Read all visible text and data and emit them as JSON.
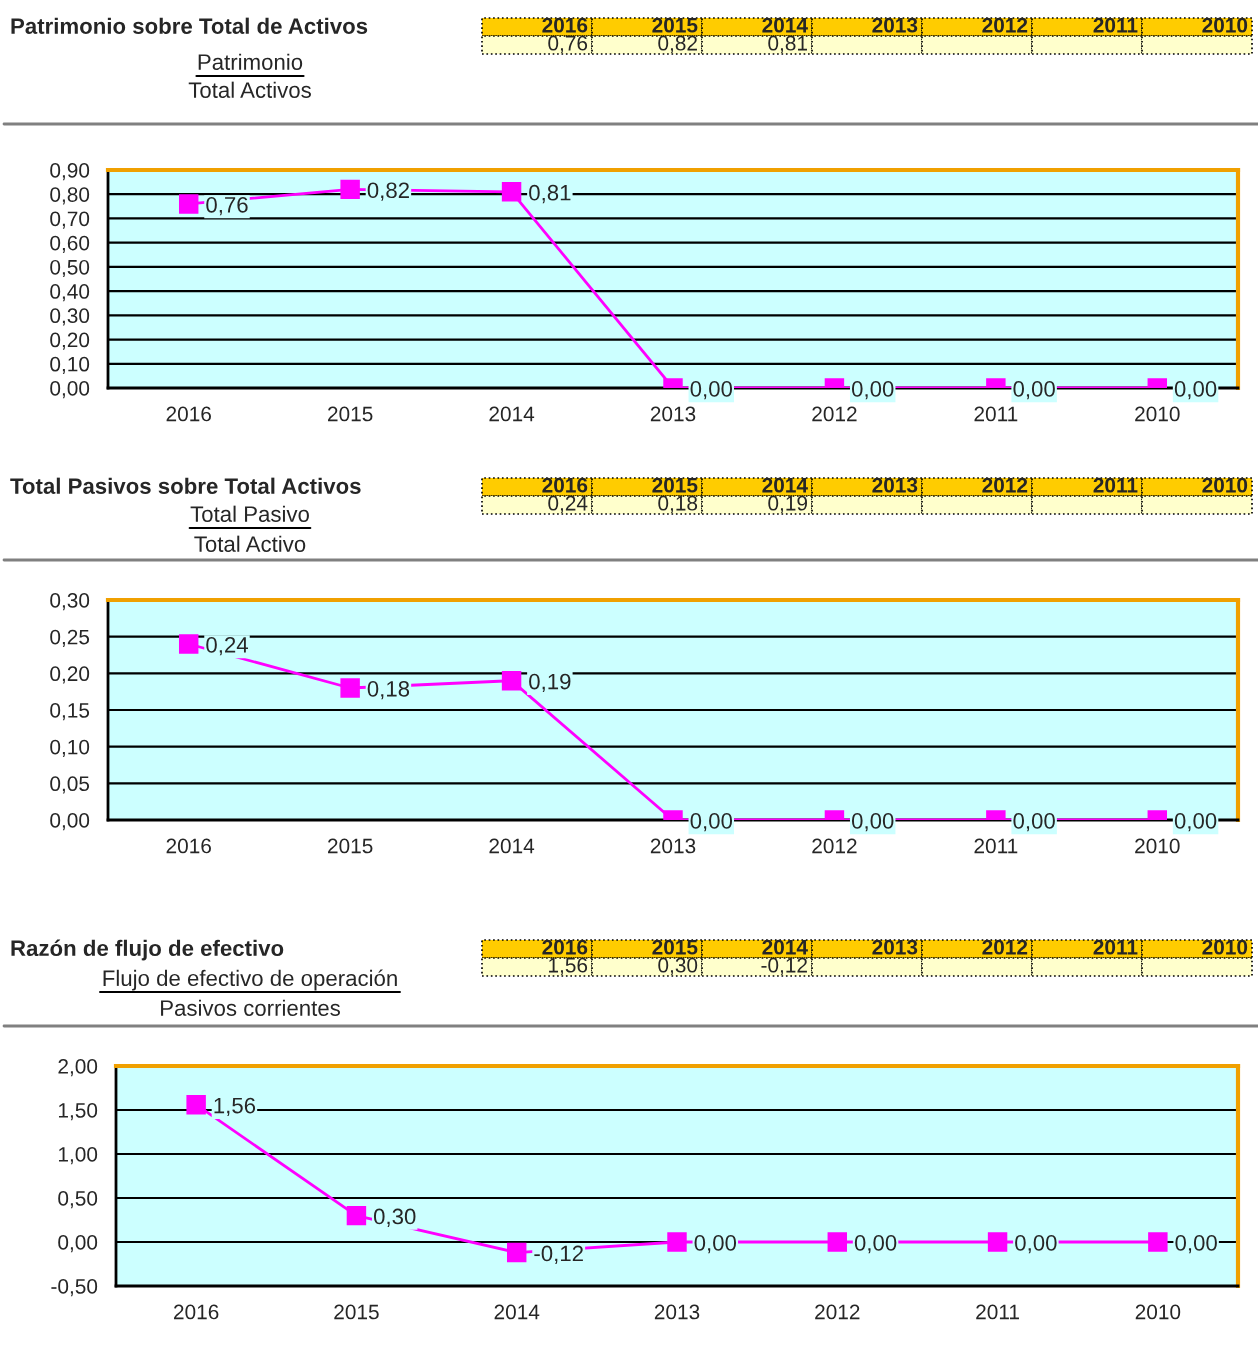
{
  "chart_data": [
    {
      "type": "line",
      "title": "Patrimonio sobre Total de Activos",
      "annotations": [
        "Patrimonio",
        "Total Activos",
        "0,76",
        "0,82",
        "0,81"
      ],
      "categories": [
        "2016",
        "2015",
        "2014",
        "2013",
        "2012",
        "2011",
        "2010"
      ],
      "series": [
        {
          "color": "#ff00ff",
          "values": [
            0.76,
            0.82,
            0.81,
            0,
            0,
            0,
            0
          ],
          "value_labels": [
            "0,76",
            "0,82",
            "0,81",
            "0,00",
            "0,00",
            "0,00",
            "0,00"
          ]
        }
      ],
      "ylim": [
        0,
        0.9
      ],
      "yticks": [
        {
          "value": 0,
          "label": "0,00"
        },
        {
          "value": 0.1,
          "label": "0,10"
        },
        {
          "value": 0.2,
          "label": "0,20"
        },
        {
          "value": 0.3,
          "label": "0,30"
        },
        {
          "value": 0.4,
          "label": "0,40"
        },
        {
          "value": 0.5,
          "label": "0,50"
        },
        {
          "value": 0.6,
          "label": "0,60"
        },
        {
          "value": 0.7,
          "label": "0,70"
        },
        {
          "value": 0.8,
          "label": "0,80"
        },
        {
          "value": 0.9,
          "label": "0,90"
        }
      ],
      "grid": "y",
      "legend": false,
      "marker": "square",
      "line_style": "solid"
    },
    {
      "type": "line",
      "title": "Total Pasivos sobre Total Activos",
      "annotations": [
        "Total Pasivo",
        "Total Activo",
        "0,24",
        "0,18",
        "0,19"
      ],
      "categories": [
        "2016",
        "2015",
        "2014",
        "2013",
        "2012",
        "2011",
        "2010"
      ],
      "series": [
        {
          "color": "#ff00ff",
          "values": [
            0.24,
            0.18,
            0.19,
            0,
            0,
            0,
            0
          ],
          "value_labels": [
            "0,24",
            "0,18",
            "0,19",
            "0,00",
            "0,00",
            "0,00",
            "0,00"
          ]
        }
      ],
      "ylim": [
        0,
        0.3
      ],
      "yticks": [
        {
          "value": 0,
          "label": "0,00"
        },
        {
          "value": 0.05,
          "label": "0,05"
        },
        {
          "value": 0.1,
          "label": "0,10"
        },
        {
          "value": 0.15,
          "label": "0,15"
        },
        {
          "value": 0.2,
          "label": "0,20"
        },
        {
          "value": 0.25,
          "label": "0,25"
        },
        {
          "value": 0.3,
          "label": "0,30"
        }
      ],
      "grid": "y",
      "legend": false,
      "marker": "square",
      "line_style": "solid"
    },
    {
      "type": "line",
      "title": "Razón de flujo de efectivo",
      "annotations": [
        "Flujo de efectivo de operación",
        "Pasivos corrientes",
        "1,56",
        "0,30",
        "-0,12"
      ],
      "categories": [
        "2016",
        "2015",
        "2014",
        "2013",
        "2012",
        "2011",
        "2010"
      ],
      "series": [
        {
          "color": "#ff00ff",
          "values": [
            1.56,
            0.3,
            -0.12,
            0,
            0,
            0,
            0
          ],
          "value_labels": [
            "1,56",
            "0,30",
            "-0,12",
            "0,00",
            "0,00",
            "0,00",
            "0,00"
          ]
        }
      ],
      "ylim": [
        -0.5,
        2.0
      ],
      "yticks": [
        {
          "value": -0.5,
          "label": "-0,50"
        },
        {
          "value": 0,
          "label": "0,00"
        },
        {
          "value": 0.5,
          "label": "0,50"
        },
        {
          "value": 1.0,
          "label": "1,00"
        },
        {
          "value": 1.5,
          "label": "1,50"
        },
        {
          "value": 2.0,
          "label": "2,00"
        }
      ],
      "grid": "y",
      "legend": false,
      "marker": "square",
      "line_style": "solid"
    }
  ]
}
